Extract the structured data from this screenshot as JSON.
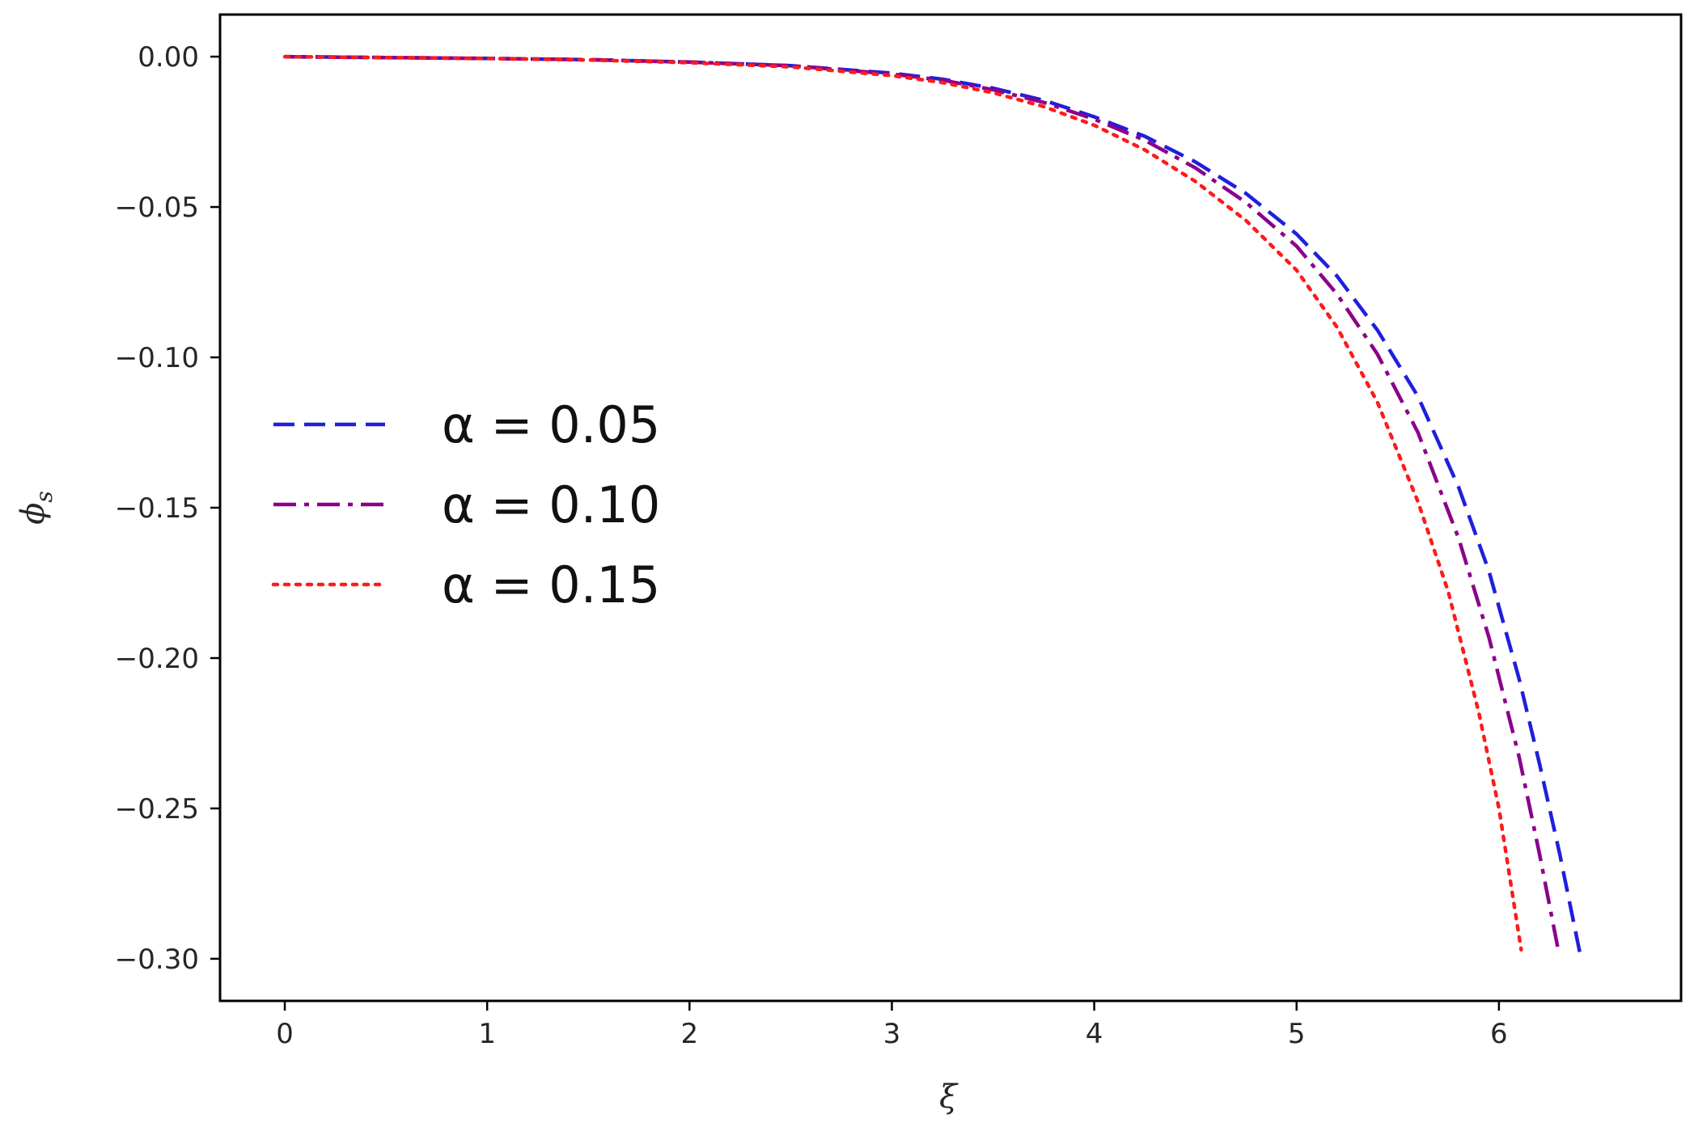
{
  "chart_data": {
    "type": "line",
    "title": "",
    "xlabel": "ξ",
    "ylabel": "ϕ",
    "ylabel_sub": "s",
    "xlim": [
      -0.32,
      6.9
    ],
    "ylim": [
      -0.314,
      0.014
    ],
    "xticks": [
      0,
      1,
      2,
      3,
      4,
      5,
      6
    ],
    "xtick_labels": [
      "0",
      "1",
      "2",
      "3",
      "4",
      "5",
      "6"
    ],
    "yticks": [
      0.0,
      -0.05,
      -0.1,
      -0.15,
      -0.2,
      -0.25,
      -0.3
    ],
    "ytick_labels": [
      "0.00",
      "−0.05",
      "−0.10",
      "−0.15",
      "−0.20",
      "−0.25",
      "−0.30"
    ],
    "grid": false,
    "legend_position": "center-left",
    "series": [
      {
        "name": "α = 0.05",
        "color": "#1f1fdd",
        "dash": "dashed",
        "x": [
          0,
          0.5,
          1,
          1.5,
          2,
          2.5,
          3,
          3.25,
          3.5,
          3.75,
          4,
          4.25,
          4.5,
          4.75,
          5,
          5.2,
          5.4,
          5.6,
          5.8,
          5.95,
          6.1,
          6.2,
          6.3,
          6.4
        ],
        "y": [
          0.0,
          -0.0003,
          -0.0006,
          -0.001,
          -0.0018,
          -0.003,
          -0.0055,
          -0.0075,
          -0.0105,
          -0.0145,
          -0.02,
          -0.0265,
          -0.035,
          -0.0455,
          -0.059,
          -0.073,
          -0.091,
          -0.113,
          -0.143,
          -0.171,
          -0.207,
          -0.235,
          -0.265,
          -0.298
        ]
      },
      {
        "name": "α = 0.10",
        "color": "#8b008b",
        "dash": "dashdot",
        "x": [
          0,
          0.5,
          1,
          1.5,
          2,
          2.5,
          3,
          3.25,
          3.5,
          3.75,
          4,
          4.25,
          4.5,
          4.75,
          5,
          5.2,
          5.4,
          5.6,
          5.8,
          5.95,
          6.1,
          6.2,
          6.29
        ],
        "y": [
          0.0,
          -0.0003,
          -0.0006,
          -0.001,
          -0.0018,
          -0.003,
          -0.0058,
          -0.0078,
          -0.011,
          -0.0152,
          -0.0208,
          -0.0278,
          -0.037,
          -0.0485,
          -0.063,
          -0.079,
          -0.099,
          -0.125,
          -0.16,
          -0.193,
          -0.233,
          -0.265,
          -0.296
        ]
      },
      {
        "name": "α = 0.15",
        "color": "#ff1a1a",
        "dash": "dotted",
        "x": [
          0,
          0.5,
          1,
          1.5,
          2,
          2.5,
          3,
          3.25,
          3.5,
          3.75,
          4,
          4.25,
          4.5,
          4.75,
          5,
          5.2,
          5.4,
          5.6,
          5.75,
          5.9,
          6.0,
          6.11
        ],
        "y": [
          0.0,
          -0.0003,
          -0.0006,
          -0.0011,
          -0.002,
          -0.0034,
          -0.0063,
          -0.0086,
          -0.012,
          -0.0166,
          -0.0228,
          -0.031,
          -0.0415,
          -0.0545,
          -0.071,
          -0.09,
          -0.115,
          -0.148,
          -0.178,
          -0.218,
          -0.25,
          -0.297
        ]
      }
    ]
  }
}
